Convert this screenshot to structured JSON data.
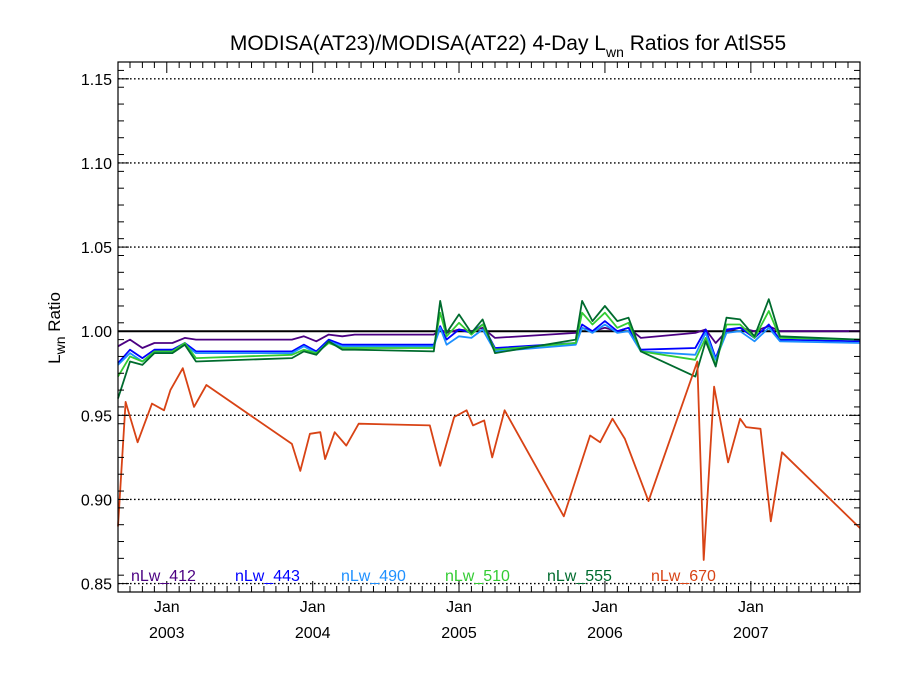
{
  "chart_data": {
    "type": "line",
    "title": {
      "prefix": "MODISA(AT23)/MODISA(AT22) 4-Day L",
      "subscript": "wn",
      "suffix": " Ratios for AtlS55"
    },
    "ylabel": {
      "main": "L",
      "subscript": "wn",
      "suffix": " Ratio"
    },
    "ylim": [
      0.845,
      1.16
    ],
    "yticks": [
      "0.85",
      "0.90",
      "0.95",
      "1.00",
      "1.05",
      "1.10",
      "1.15"
    ],
    "ytick_values": [
      0.85,
      0.9,
      0.95,
      1.0,
      1.05,
      1.1,
      1.15
    ],
    "xlim": [
      "2002-09-01",
      "2007-10-01"
    ],
    "xticks": [
      {
        "date": "2003-01-01",
        "month": "Jan",
        "year": "2003"
      },
      {
        "date": "2004-01-01",
        "month": "Jan",
        "year": "2004"
      },
      {
        "date": "2005-01-01",
        "month": "Jan",
        "year": "2005"
      },
      {
        "date": "2006-01-01",
        "month": "Jan",
        "year": "2006"
      },
      {
        "date": "2007-01-01",
        "month": "Jan",
        "year": "2007"
      }
    ],
    "reference_line": 1.0,
    "grid": "dotted horizontal at y ticks",
    "legend_placement": "bottom-left inside plot",
    "series": [
      {
        "name": "nLw_412",
        "color": "#4b0082",
        "points": [
          [
            "2002-09-01",
            0.991
          ],
          [
            "2002-10-01",
            0.995
          ],
          [
            "2002-11-01",
            0.99
          ],
          [
            "2002-12-01",
            0.993
          ],
          [
            "2003-01-15",
            0.993
          ],
          [
            "2003-02-15",
            0.996
          ],
          [
            "2003-03-15",
            0.995
          ],
          [
            "2003-11-10",
            0.995
          ],
          [
            "2003-12-10",
            0.997
          ],
          [
            "2004-01-10",
            0.994
          ],
          [
            "2004-02-10",
            0.998
          ],
          [
            "2004-03-15",
            0.997
          ],
          [
            "2004-04-15",
            0.998
          ],
          [
            "2004-10-30",
            0.998
          ],
          [
            "2004-11-15",
            1.001
          ],
          [
            "2004-12-01",
            0.999
          ],
          [
            "2005-01-01",
            1.001
          ],
          [
            "2005-02-01",
            1.0
          ],
          [
            "2005-03-01",
            1.002
          ],
          [
            "2005-04-01",
            0.996
          ],
          [
            "2005-10-20",
            0.999
          ],
          [
            "2005-11-05",
            1.002
          ],
          [
            "2005-12-01",
            1.0
          ],
          [
            "2006-01-01",
            1.002
          ],
          [
            "2006-02-01",
            1.0
          ],
          [
            "2006-03-01",
            1.002
          ],
          [
            "2006-04-01",
            0.996
          ],
          [
            "2006-08-15",
            0.999
          ],
          [
            "2006-09-10",
            1.001
          ],
          [
            "2006-10-05",
            0.993
          ],
          [
            "2006-11-01",
            1.0
          ],
          [
            "2006-12-05",
            1.002
          ],
          [
            "2007-01-10",
            1.0
          ],
          [
            "2007-02-15",
            1.003
          ],
          [
            "2007-03-15",
            1.0
          ],
          [
            "2007-10-01",
            1.0
          ]
        ]
      },
      {
        "name": "nLw_443",
        "color": "#0000ff",
        "points": [
          [
            "2002-09-01",
            0.981
          ],
          [
            "2002-10-01",
            0.989
          ],
          [
            "2002-11-01",
            0.984
          ],
          [
            "2002-12-01",
            0.989
          ],
          [
            "2003-01-15",
            0.989
          ],
          [
            "2003-02-15",
            0.993
          ],
          [
            "2003-03-15",
            0.988
          ],
          [
            "2003-11-10",
            0.988
          ],
          [
            "2003-12-10",
            0.992
          ],
          [
            "2004-01-10",
            0.988
          ],
          [
            "2004-02-10",
            0.995
          ],
          [
            "2004-03-15",
            0.992
          ],
          [
            "2004-04-15",
            0.992
          ],
          [
            "2004-10-30",
            0.992
          ],
          [
            "2004-11-15",
            1.003
          ],
          [
            "2004-12-01",
            0.995
          ],
          [
            "2005-01-01",
            1.001
          ],
          [
            "2005-02-01",
            0.999
          ],
          [
            "2005-03-01",
            1.004
          ],
          [
            "2005-04-01",
            0.99
          ],
          [
            "2005-10-20",
            0.993
          ],
          [
            "2005-11-05",
            1.004
          ],
          [
            "2005-12-01",
            1.0
          ],
          [
            "2006-01-01",
            1.006
          ],
          [
            "2006-02-01",
            1.0
          ],
          [
            "2006-03-01",
            1.002
          ],
          [
            "2006-04-01",
            0.989
          ],
          [
            "2006-08-15",
            0.99
          ],
          [
            "2006-09-10",
            1.001
          ],
          [
            "2006-10-05",
            0.984
          ],
          [
            "2006-11-01",
            1.001
          ],
          [
            "2006-12-05",
            1.002
          ],
          [
            "2007-01-10",
            0.996
          ],
          [
            "2007-02-15",
            1.004
          ],
          [
            "2007-03-15",
            0.995
          ],
          [
            "2007-10-01",
            0.994
          ]
        ]
      },
      {
        "name": "nLw_490",
        "color": "#1e90ff",
        "points": [
          [
            "2002-09-01",
            0.98
          ],
          [
            "2002-10-01",
            0.987
          ],
          [
            "2002-11-01",
            0.982
          ],
          [
            "2002-12-01",
            0.987
          ],
          [
            "2003-01-15",
            0.988
          ],
          [
            "2003-02-15",
            0.992
          ],
          [
            "2003-03-15",
            0.987
          ],
          [
            "2003-11-10",
            0.987
          ],
          [
            "2003-12-10",
            0.991
          ],
          [
            "2004-01-10",
            0.987
          ],
          [
            "2004-02-10",
            0.994
          ],
          [
            "2004-03-15",
            0.991
          ],
          [
            "2004-04-15",
            0.991
          ],
          [
            "2004-10-30",
            0.991
          ],
          [
            "2004-11-15",
            1.002
          ],
          [
            "2004-12-01",
            0.992
          ],
          [
            "2005-01-01",
            0.997
          ],
          [
            "2005-02-01",
            0.996
          ],
          [
            "2005-03-01",
            1.001
          ],
          [
            "2005-04-01",
            0.988
          ],
          [
            "2005-10-20",
            0.992
          ],
          [
            "2005-11-05",
            1.002
          ],
          [
            "2005-12-01",
            0.999
          ],
          [
            "2006-01-01",
            1.004
          ],
          [
            "2006-02-01",
            0.999
          ],
          [
            "2006-03-01",
            1.0
          ],
          [
            "2006-04-01",
            0.988
          ],
          [
            "2006-08-15",
            0.986
          ],
          [
            "2006-09-10",
            0.999
          ],
          [
            "2006-10-05",
            0.983
          ],
          [
            "2006-11-01",
            0.999
          ],
          [
            "2006-12-05",
            1.0
          ],
          [
            "2007-01-10",
            0.994
          ],
          [
            "2007-02-15",
            1.002
          ],
          [
            "2007-03-15",
            0.994
          ],
          [
            "2007-10-01",
            0.993
          ]
        ]
      },
      {
        "name": "nLw_510",
        "color": "#33cc33",
        "points": [
          [
            "2002-09-01",
            0.973
          ],
          [
            "2002-10-01",
            0.985
          ],
          [
            "2002-11-01",
            0.982
          ],
          [
            "2002-12-01",
            0.988
          ],
          [
            "2003-01-15",
            0.988
          ],
          [
            "2003-02-15",
            0.993
          ],
          [
            "2003-03-15",
            0.984
          ],
          [
            "2003-11-10",
            0.986
          ],
          [
            "2003-12-10",
            0.989
          ],
          [
            "2004-01-10",
            0.987
          ],
          [
            "2004-02-10",
            0.993
          ],
          [
            "2004-03-15",
            0.99
          ],
          [
            "2004-04-15",
            0.99
          ],
          [
            "2004-10-30",
            0.99
          ],
          [
            "2004-11-15",
            1.011
          ],
          [
            "2004-12-01",
            0.997
          ],
          [
            "2005-01-01",
            1.005
          ],
          [
            "2005-02-01",
            0.998
          ],
          [
            "2005-03-01",
            1.004
          ],
          [
            "2005-04-01",
            0.989
          ],
          [
            "2005-10-20",
            0.993
          ],
          [
            "2005-11-05",
            1.011
          ],
          [
            "2005-12-01",
            1.004
          ],
          [
            "2006-01-01",
            1.011
          ],
          [
            "2006-02-01",
            1.002
          ],
          [
            "2006-03-01",
            1.005
          ],
          [
            "2006-04-01",
            0.988
          ],
          [
            "2006-08-15",
            0.983
          ],
          [
            "2006-09-10",
            0.996
          ],
          [
            "2006-10-05",
            0.98
          ],
          [
            "2006-11-01",
            1.004
          ],
          [
            "2006-12-05",
            1.004
          ],
          [
            "2007-01-10",
            0.996
          ],
          [
            "2007-02-15",
            1.012
          ],
          [
            "2007-03-15",
            0.996
          ],
          [
            "2007-10-01",
            0.995
          ]
        ]
      },
      {
        "name": "nLw_555",
        "color": "#006b2e",
        "points": [
          [
            "2002-09-01",
            0.96
          ],
          [
            "2002-10-01",
            0.982
          ],
          [
            "2002-11-01",
            0.98
          ],
          [
            "2002-12-01",
            0.987
          ],
          [
            "2003-01-15",
            0.987
          ],
          [
            "2003-02-15",
            0.992
          ],
          [
            "2003-03-15",
            0.982
          ],
          [
            "2003-11-10",
            0.984
          ],
          [
            "2003-12-10",
            0.988
          ],
          [
            "2004-01-10",
            0.986
          ],
          [
            "2004-02-10",
            0.994
          ],
          [
            "2004-03-15",
            0.989
          ],
          [
            "2004-04-15",
            0.989
          ],
          [
            "2004-10-30",
            0.988
          ],
          [
            "2004-11-15",
            1.018
          ],
          [
            "2004-12-01",
            0.999
          ],
          [
            "2005-01-01",
            1.01
          ],
          [
            "2005-02-01",
            0.999
          ],
          [
            "2005-03-01",
            1.007
          ],
          [
            "2005-04-01",
            0.987
          ],
          [
            "2005-10-20",
            0.995
          ],
          [
            "2005-11-05",
            1.018
          ],
          [
            "2005-12-01",
            1.006
          ],
          [
            "2006-01-01",
            1.015
          ],
          [
            "2006-02-01",
            1.006
          ],
          [
            "2006-03-01",
            1.008
          ],
          [
            "2006-04-01",
            0.988
          ],
          [
            "2006-08-15",
            0.973
          ],
          [
            "2006-09-10",
            0.994
          ],
          [
            "2006-10-05",
            0.979
          ],
          [
            "2006-11-01",
            1.008
          ],
          [
            "2006-12-05",
            1.007
          ],
          [
            "2007-01-10",
            0.997
          ],
          [
            "2007-02-15",
            1.019
          ],
          [
            "2007-03-15",
            0.997
          ],
          [
            "2007-10-01",
            0.995
          ]
        ]
      },
      {
        "name": "nLw_670",
        "color": "#d84315",
        "points": [
          [
            "2002-09-01",
            0.884
          ],
          [
            "2002-09-20",
            0.958
          ],
          [
            "2002-10-20",
            0.934
          ],
          [
            "2002-11-25",
            0.957
          ],
          [
            "2002-12-25",
            0.953
          ],
          [
            "2003-01-10",
            0.965
          ],
          [
            "2003-02-10",
            0.978
          ],
          [
            "2003-03-10",
            0.955
          ],
          [
            "2003-04-10",
            0.968
          ],
          [
            "2003-11-10",
            0.933
          ],
          [
            "2003-12-01",
            0.917
          ],
          [
            "2003-12-25",
            0.939
          ],
          [
            "2004-01-20",
            0.94
          ],
          [
            "2004-02-01",
            0.924
          ],
          [
            "2004-02-25",
            0.94
          ],
          [
            "2004-03-25",
            0.932
          ],
          [
            "2004-04-25",
            0.945
          ],
          [
            "2004-10-20",
            0.944
          ],
          [
            "2004-11-15",
            0.92
          ],
          [
            "2004-12-20",
            0.949
          ],
          [
            "2005-01-20",
            0.953
          ],
          [
            "2005-02-05",
            0.944
          ],
          [
            "2005-03-05",
            0.947
          ],
          [
            "2005-03-25",
            0.925
          ],
          [
            "2005-04-25",
            0.953
          ],
          [
            "2005-09-20",
            0.89
          ],
          [
            "2005-11-25",
            0.938
          ],
          [
            "2005-12-20",
            0.934
          ],
          [
            "2006-01-20",
            0.948
          ],
          [
            "2006-02-20",
            0.936
          ],
          [
            "2006-04-20",
            0.899
          ],
          [
            "2006-08-20",
            0.982
          ],
          [
            "2006-09-05",
            0.864
          ],
          [
            "2006-10-01",
            0.967
          ],
          [
            "2006-11-05",
            0.922
          ],
          [
            "2006-12-05",
            0.948
          ],
          [
            "2006-12-20",
            0.943
          ],
          [
            "2007-01-25",
            0.942
          ],
          [
            "2007-02-20",
            0.887
          ],
          [
            "2007-03-20",
            0.928
          ],
          [
            "2007-10-01",
            0.883
          ]
        ]
      }
    ]
  }
}
